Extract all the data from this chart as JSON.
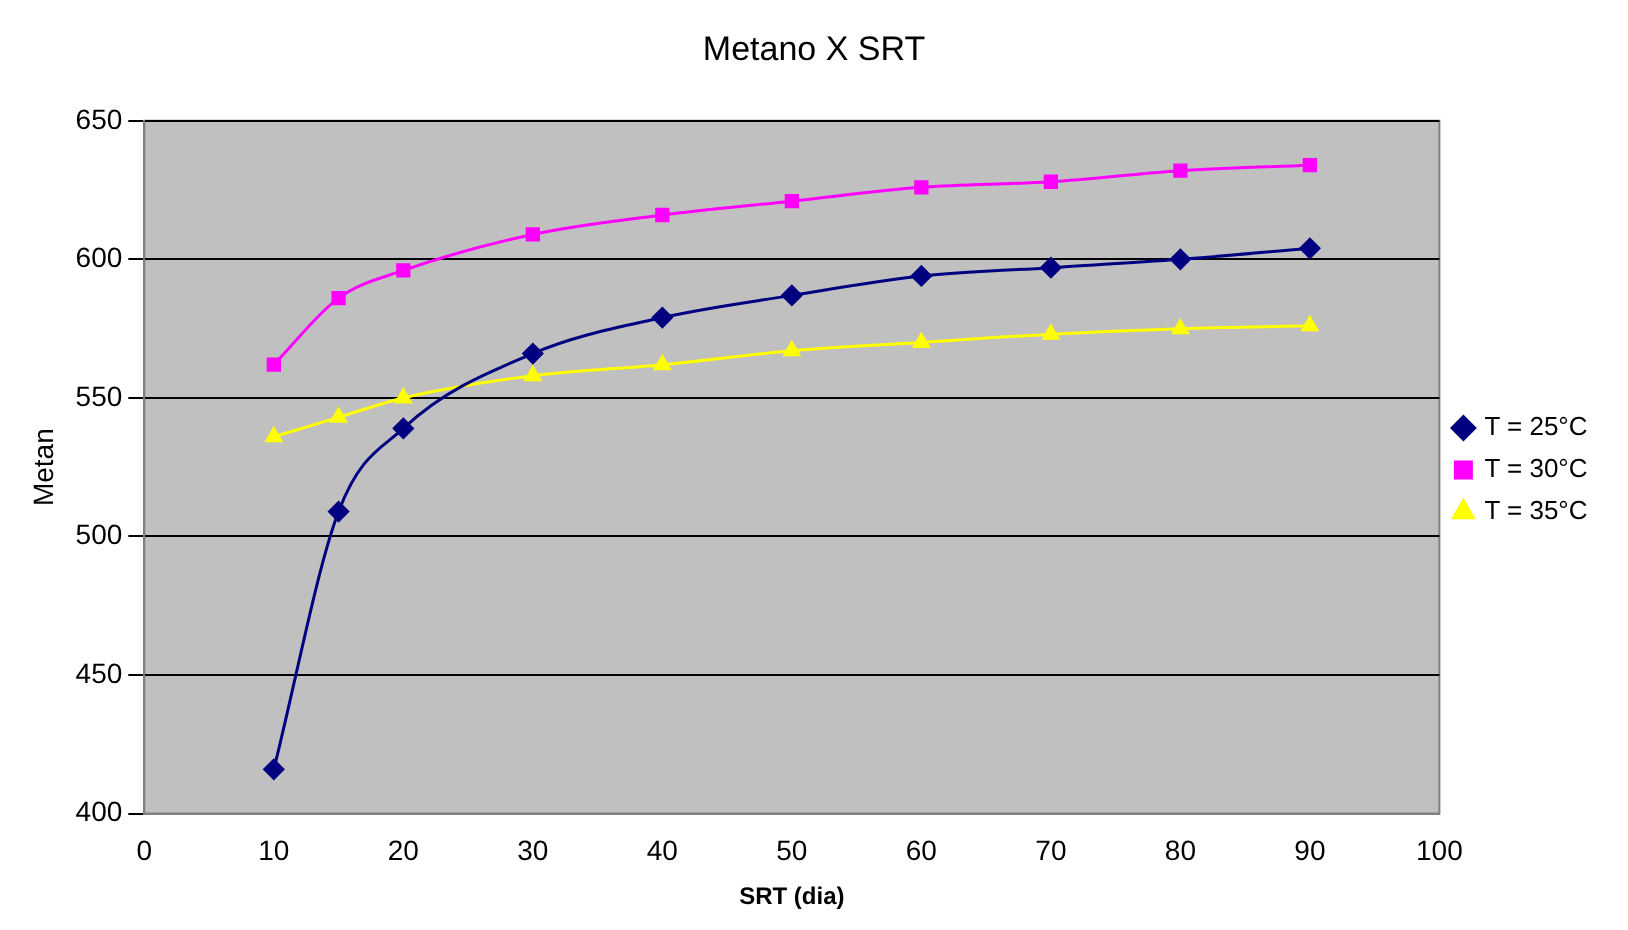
{
  "chart_data": {
    "type": "line",
    "title": "Metano X SRT",
    "xlabel": "SRT (dia)",
    "ylabel": "Metan",
    "x": [
      10,
      15,
      20,
      30,
      40,
      50,
      60,
      70,
      80,
      90
    ],
    "series": [
      {
        "name": "T = 25°C",
        "color": "#000080",
        "marker": "diamond",
        "values": [
          416,
          509,
          539,
          566,
          579,
          587,
          594,
          597,
          600,
          604
        ]
      },
      {
        "name": "T = 30°C",
        "color": "#ff00ff",
        "marker": "square",
        "values": [
          562,
          586,
          596,
          609,
          616,
          621,
          626,
          628,
          632,
          634
        ]
      },
      {
        "name": "T = 35°C",
        "color": "#ffff00",
        "marker": "triangle",
        "values": [
          536,
          543,
          550,
          558,
          562,
          567,
          570,
          573,
          575,
          576
        ]
      }
    ],
    "xlim": [
      0,
      100
    ],
    "xticks": [
      0,
      10,
      20,
      30,
      40,
      50,
      60,
      70,
      80,
      90,
      100
    ],
    "ylim": [
      400,
      650
    ],
    "yticks": [
      400,
      450,
      500,
      550,
      600,
      650
    ],
    "grid": "y",
    "legend": "right"
  }
}
